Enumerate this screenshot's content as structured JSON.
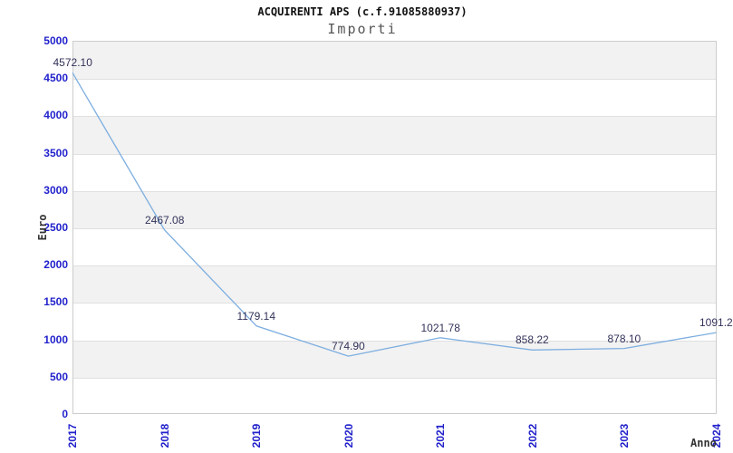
{
  "header": {
    "title": "ACQUIRENTI APS (c.f.91085880937)",
    "subtitle": "Importi"
  },
  "chart_data": {
    "type": "line",
    "title": "ACQUIRENTI APS (c.f.91085880937)",
    "subtitle": "Importi",
    "x": [
      2017,
      2018,
      2019,
      2020,
      2021,
      2022,
      2023,
      2024
    ],
    "series": [
      {
        "name": "Importi",
        "values": [
          4572.1,
          2467.08,
          1179.14,
          774.9,
          1021.78,
          858.22,
          878.1,
          1091.2
        ]
      }
    ],
    "point_labels": [
      "4572.10",
      "2467.08",
      "1179.14",
      "774.90",
      "1021.78",
      "858.22",
      "878.10",
      "1091.2"
    ],
    "xlabel": "Anno",
    "ylabel": "Euro",
    "ylim": [
      0,
      5000
    ],
    "ytick_step": 500,
    "ytick_labels": [
      "0",
      "500",
      "1000",
      "1500",
      "2000",
      "2500",
      "3000",
      "3500",
      "4000",
      "4500",
      "5000"
    ],
    "grid": "horizontal gridlines every 500 with alternating gray bands",
    "legend": "none",
    "colors": {
      "line": "#7daee0",
      "tick_label": "#2222cc",
      "point_label": "#32325a",
      "band": "#f2f2f2",
      "gridline": "#e0e0e0",
      "plot_border": "#cccccc",
      "title": "#111111",
      "subtitle": "#555555",
      "axis_title": "#333333",
      "background": "#ffffff"
    }
  }
}
